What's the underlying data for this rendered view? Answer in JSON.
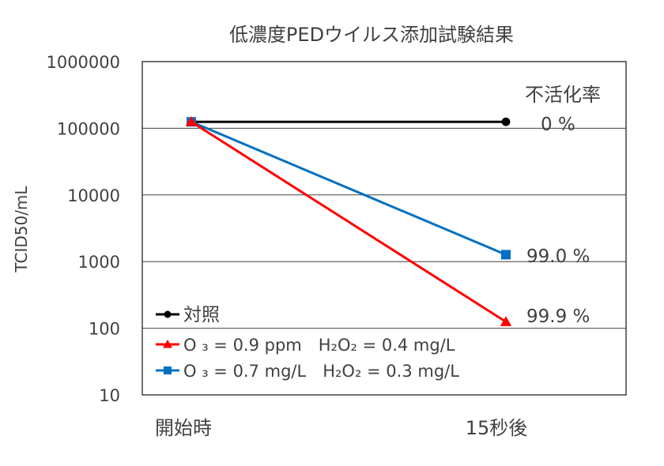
{
  "chart_data": {
    "type": "line",
    "title": "低濃度PEDウイルス添加試験結果",
    "xlabel": "",
    "ylabel": "TCID50/mL",
    "yscale": "log",
    "ylim": [
      10,
      1000000
    ],
    "yticks": [
      "10",
      "100",
      "1000",
      "10000",
      "100000",
      "1000000"
    ],
    "categories": [
      "開始時",
      "15秒後"
    ],
    "grid": true,
    "legend_position": "bottom-left",
    "annotation_header": "不活化率",
    "series": [
      {
        "name": "対照",
        "values": [
          125000,
          125000
        ],
        "color": "#000000",
        "marker": "circle",
        "label": "0 %"
      },
      {
        "name": "O ₃ = 0.9 ppm　H₂O₂ = 0.4 mg/L",
        "values": [
          125000,
          125
        ],
        "color": "#ff0000",
        "marker": "triangle",
        "label": "99.9 %"
      },
      {
        "name": "O ₃ = 0.7 mg/L　H₂O₂ = 0.3 mg/L",
        "values": [
          125000,
          1270
        ],
        "color": "#0070c0",
        "marker": "square",
        "label": "99.0 %"
      }
    ]
  }
}
